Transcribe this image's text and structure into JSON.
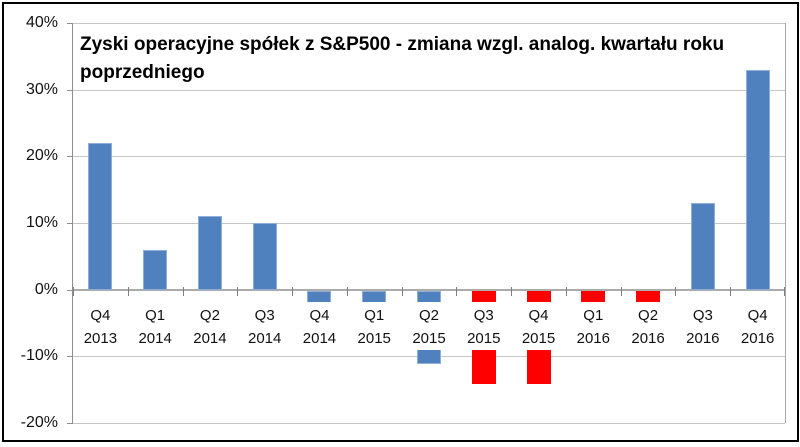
{
  "window": {
    "background": "#ffffff",
    "border_color": "#000000"
  },
  "chart_data": {
    "type": "bar",
    "title": "Zyski operacyjne spółek z S&P500 - zmiana wzgl. analog. kwartału roku poprzedniego",
    "title_lines": [
      "Zyski operacyjne spółek z S&P500 - zmiana wzgl. analog. kwartału roku",
      "poprzedniego"
    ],
    "categories": [
      [
        "Q4",
        "2013"
      ],
      [
        "Q1",
        "2014"
      ],
      [
        "Q2",
        "2014"
      ],
      [
        "Q3",
        "2014"
      ],
      [
        "Q4",
        "2014"
      ],
      [
        "Q1",
        "2015"
      ],
      [
        "Q2",
        "2015"
      ],
      [
        "Q3",
        "2015"
      ],
      [
        "Q4",
        "2015"
      ],
      [
        "Q1",
        "2016"
      ],
      [
        "Q2",
        "2016"
      ],
      [
        "Q3",
        "2016"
      ],
      [
        "Q4",
        "2016"
      ]
    ],
    "values": [
      22,
      6,
      11,
      10,
      -2,
      -2,
      -11,
      -14,
      -14,
      -2,
      -2,
      13,
      33
    ],
    "unit": "percent",
    "bar_colors": [
      "blue",
      "blue",
      "blue",
      "blue",
      "blue",
      "blue",
      "blue",
      "red",
      "red",
      "red",
      "red",
      "blue",
      "blue"
    ],
    "colors": {
      "blue": "#4E81BD",
      "blue_border": "#8FAFD6",
      "red": "#FF0000",
      "gridline": "#C6C6C6",
      "zero_axis": "#ABABAB"
    },
    "ylim": [
      -20,
      40
    ],
    "yticks": [
      {
        "value": 40,
        "label": "40%"
      },
      {
        "value": 30,
        "label": "30%"
      },
      {
        "value": 20,
        "label": "20%"
      },
      {
        "value": 10,
        "label": "10%"
      },
      {
        "value": 0,
        "label": "0%"
      },
      {
        "value": -10,
        "label": "-10%"
      },
      {
        "value": -20,
        "label": "-20%"
      }
    ],
    "grid": true,
    "legend_position": "none",
    "xlabel": "",
    "ylabel": ""
  }
}
